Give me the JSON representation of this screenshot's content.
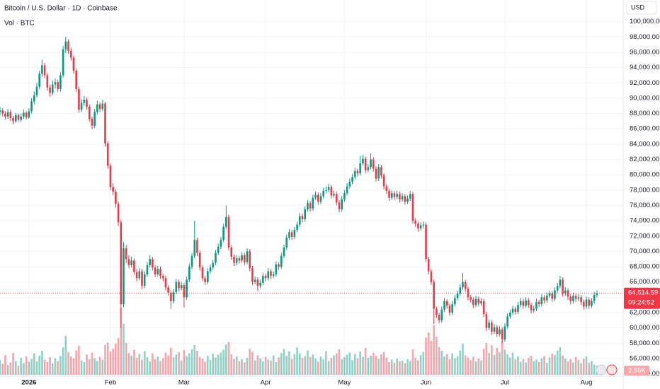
{
  "chart_data": {
    "type": "candlestick",
    "title": "Bitcoin / U.S. Dollar · 1D · Coinbase",
    "volume_title": "Vol · BTC",
    "currency": "USD",
    "up_color": "#089981",
    "down_color": "#f23645",
    "grid": true,
    "xlim": [
      0,
      237
    ],
    "xticks": [
      {
        "value": 11,
        "label": "2026"
      },
      {
        "value": 42,
        "label": "Feb"
      },
      {
        "value": 70,
        "label": "Mar"
      },
      {
        "value": 101,
        "label": "Apr"
      },
      {
        "value": 131,
        "label": "May"
      },
      {
        "value": 162,
        "label": "Jun"
      },
      {
        "value": 192,
        "label": "Jul"
      },
      {
        "value": 223,
        "label": "Aug"
      }
    ],
    "ylim": [
      52950,
      102830
    ],
    "yticks": [
      {
        "value": 54000,
        "label": "54,000.00"
      },
      {
        "value": 56000,
        "label": "56,000.00"
      },
      {
        "value": 58000,
        "label": "58,000.00"
      },
      {
        "value": 60000,
        "label": "60,000.00"
      },
      {
        "value": 62000,
        "label": "62,000.00"
      },
      {
        "value": 64000,
        "label": "64,000.00"
      },
      {
        "value": 66000,
        "label": "66,000.00"
      },
      {
        "value": 68000,
        "label": "68,000.00"
      },
      {
        "value": 70000,
        "label": "70,000.00"
      },
      {
        "value": 72000,
        "label": "72,000.00"
      },
      {
        "value": 74000,
        "label": "74,000.00"
      },
      {
        "value": 76000,
        "label": "76,000.00"
      },
      {
        "value": 78000,
        "label": "78,000.00"
      },
      {
        "value": 80000,
        "label": "80,000.00"
      },
      {
        "value": 82000,
        "label": "82,000.00"
      },
      {
        "value": 84000,
        "label": "84,000.00"
      },
      {
        "value": 86000,
        "label": "86,000.00"
      },
      {
        "value": 88000,
        "label": "88,000.00"
      },
      {
        "value": 90000,
        "label": "90,000.00"
      },
      {
        "value": 92000,
        "label": "92,000.00"
      },
      {
        "value": 94000,
        "label": "94,000.00"
      },
      {
        "value": 96000,
        "label": "96,000.00"
      },
      {
        "value": 98000,
        "label": "98,000.00"
      },
      {
        "value": 100000,
        "label": "100,000.00"
      }
    ],
    "volume_lim": [
      0,
      20000
    ],
    "last_price": {
      "value": 64514.59,
      "label": "64,514.59"
    },
    "countdown": "09:24:52",
    "last_volume": {
      "value": 2550,
      "label": "2.55K"
    },
    "x": [
      0,
      1,
      2,
      3,
      4,
      5,
      6,
      7,
      8,
      9,
      10,
      11,
      12,
      13,
      14,
      15,
      16,
      17,
      18,
      19,
      20,
      21,
      22,
      23,
      24,
      25,
      26,
      27,
      28,
      29,
      30,
      31,
      32,
      33,
      34,
      35,
      36,
      37,
      38,
      39,
      40,
      41,
      42,
      43,
      44,
      45,
      46,
      47,
      48,
      49,
      50,
      51,
      52,
      53,
      54,
      55,
      56,
      57,
      58,
      59,
      60,
      61,
      62,
      63,
      64,
      65,
      66,
      67,
      68,
      69,
      70,
      71,
      72,
      73,
      74,
      75,
      76,
      77,
      78,
      79,
      80,
      81,
      82,
      83,
      84,
      85,
      86,
      87,
      88,
      89,
      90,
      91,
      92,
      93,
      94,
      95,
      96,
      97,
      98,
      99,
      100,
      101,
      102,
      103,
      104,
      105,
      106,
      107,
      108,
      109,
      110,
      111,
      112,
      113,
      114,
      115,
      116,
      117,
      118,
      119,
      120,
      121,
      122,
      123,
      124,
      125,
      126,
      127,
      128,
      129,
      130,
      131,
      132,
      133,
      134,
      135,
      136,
      137,
      138,
      139,
      140,
      141,
      142,
      143,
      144,
      145,
      146,
      147,
      148,
      149,
      150,
      151,
      152,
      153,
      154,
      155,
      156,
      157,
      158,
      159,
      160,
      161,
      162,
      163,
      164,
      165,
      166,
      167,
      168,
      169,
      170,
      171,
      172,
      173,
      174,
      175,
      176,
      177,
      178,
      179,
      180,
      181,
      182,
      183,
      184,
      185,
      186,
      187,
      188,
      189,
      190,
      191,
      192,
      193,
      194,
      195,
      196,
      197,
      198,
      199,
      200,
      201,
      202,
      203,
      204,
      205,
      206,
      207,
      208,
      209,
      210,
      211,
      212,
      213,
      214,
      215,
      216,
      217,
      218,
      219,
      220,
      221,
      222,
      223,
      224,
      225,
      226,
      227
    ],
    "open": [
      88200,
      88400,
      88000,
      87600,
      88200,
      87400,
      87000,
      87800,
      87200,
      87600,
      88100,
      87500,
      88300,
      89600,
      90400,
      91500,
      93200,
      94300,
      93000,
      91400,
      90700,
      91800,
      92100,
      91200,
      93000,
      96400,
      97400,
      96200,
      95300,
      93600,
      91200,
      88500,
      89400,
      89800,
      88900,
      87300,
      86400,
      88200,
      89200,
      88600,
      89300,
      84100,
      81200,
      78400,
      77800,
      76200,
      73800,
      63100,
      70400,
      69000,
      68200,
      68800,
      67300,
      66500,
      67400,
      65500,
      67000,
      68200,
      69000,
      67900,
      67000,
      67700,
      66800,
      66500,
      65300,
      64600,
      63500,
      64700,
      66000,
      65200,
      65600,
      64000,
      66300,
      68000,
      69400,
      71500,
      69800,
      67900,
      66500,
      66000,
      67400,
      67900,
      68500,
      69800,
      70600,
      71500,
      73200,
      74500,
      70500,
      69300,
      68500,
      69100,
      68800,
      69500,
      68600,
      70000,
      67800,
      66000,
      66300,
      65500,
      65900,
      66800,
      66500,
      67400,
      66800,
      67000,
      68300,
      68000,
      69400,
      70500,
      71800,
      72500,
      71900,
      72800,
      73500,
      74600,
      74200,
      75500,
      76300,
      75600,
      77000,
      77400,
      76500,
      77200,
      77900,
      78000,
      78400,
      77300,
      77500,
      76400,
      75500,
      76800,
      77600,
      78500,
      79100,
      79700,
      80500,
      80200,
      81500,
      82100,
      80600,
      81000,
      82000,
      80800,
      79500,
      81000,
      79900,
      78500,
      77900,
      77000,
      77600,
      77100,
      77500,
      76800,
      77200,
      76500,
      76900,
      77500,
      74000,
      73600,
      73000,
      73400,
      73500,
      69000,
      67400,
      66000,
      62500,
      61700,
      61000,
      62400,
      63500,
      62900,
      62000,
      63100,
      63900,
      64500,
      65300,
      66000,
      65100,
      64000,
      63700,
      63000,
      63800,
      63200,
      63500,
      61800,
      60000,
      60700,
      59500,
      60100,
      59200,
      59800,
      58500,
      60200,
      61500,
      62000,
      62500,
      62100,
      63000,
      63500,
      62900,
      63600,
      63000,
      62300,
      62500,
      63400,
      63100,
      64000,
      63600,
      64200,
      64500,
      63800,
      64900,
      65500,
      66300,
      64500,
      64900,
      64100,
      63500,
      64200,
      63800,
      64000,
      63400,
      62800,
      63700,
      62900,
      63500,
      64300
    ],
    "high": [
      88900,
      88700,
      88300,
      88600,
      88500,
      87700,
      88100,
      88000,
      88000,
      88500,
      88300,
      88700,
      90000,
      90900,
      92000,
      93600,
      95000,
      94600,
      93300,
      91800,
      92300,
      92600,
      92400,
      93400,
      96800,
      98000,
      97700,
      96600,
      95600,
      93900,
      91500,
      89900,
      90300,
      90100,
      89200,
      87600,
      88600,
      89700,
      89500,
      89800,
      89500,
      84400,
      81500,
      78900,
      78100,
      76500,
      74100,
      71200,
      70800,
      69500,
      69300,
      69100,
      67700,
      67800,
      67700,
      67400,
      68600,
      69500,
      69300,
      68200,
      68100,
      68000,
      67100,
      66800,
      65600,
      64900,
      65100,
      66400,
      66300,
      66000,
      65900,
      66700,
      68400,
      69800,
      74000,
      71800,
      70100,
      68200,
      66800,
      67800,
      68300,
      68900,
      70200,
      71000,
      71900,
      73600,
      76000,
      74800,
      70800,
      69600,
      69500,
      69400,
      69900,
      69800,
      70400,
      70300,
      68100,
      66700,
      66600,
      66300,
      67200,
      67100,
      67800,
      67700,
      67400,
      68700,
      68600,
      69800,
      70900,
      72200,
      72900,
      72800,
      73200,
      73900,
      75000,
      74900,
      75900,
      76700,
      76600,
      77400,
      77800,
      77700,
      77600,
      78300,
      78500,
      78800,
      78700,
      77900,
      77800,
      76700,
      77200,
      78000,
      78900,
      79500,
      80100,
      80900,
      80800,
      82500,
      82600,
      82400,
      81400,
      82800,
      82300,
      81100,
      81400,
      81300,
      80200,
      78800,
      78200,
      78000,
      77900,
      77900,
      77800,
      77600,
      77500,
      77300,
      77900,
      77800,
      74300,
      73900,
      73800,
      73900,
      73800,
      69300,
      67700,
      66300,
      62800,
      62000,
      62800,
      63900,
      63800,
      63200,
      63500,
      64300,
      64900,
      65700,
      67200,
      66300,
      65400,
      64300,
      64000,
      64200,
      64100,
      63900,
      63800,
      62100,
      61100,
      61000,
      60500,
      60400,
      60200,
      60100,
      60600,
      61900,
      62400,
      62900,
      62800,
      63400,
      63900,
      63800,
      64000,
      63900,
      63300,
      62900,
      63800,
      63700,
      64400,
      64300,
      64600,
      64900,
      64800,
      65300,
      65900,
      66800,
      66600,
      65300,
      65200,
      64400,
      64600,
      64500,
      64400,
      64300,
      63700,
      64100,
      64000,
      63900,
      64700,
      64900
    ],
    "low": [
      87800,
      87600,
      87200,
      87300,
      87000,
      86600,
      86800,
      86900,
      86900,
      87300,
      87200,
      87300,
      88000,
      89200,
      90100,
      91200,
      92800,
      92600,
      91000,
      90200,
      90400,
      91300,
      90800,
      90900,
      92700,
      95900,
      95800,
      94900,
      93200,
      90800,
      88100,
      88200,
      89000,
      88500,
      86900,
      86000,
      86100,
      87900,
      88200,
      88300,
      83700,
      80800,
      78000,
      77300,
      75700,
      73300,
      60000,
      62700,
      68500,
      67800,
      67900,
      66900,
      66100,
      66200,
      65100,
      65200,
      66700,
      67900,
      67500,
      66600,
      66700,
      66400,
      66100,
      64900,
      64200,
      62500,
      63200,
      64400,
      64800,
      64900,
      62700,
      63700,
      66000,
      67700,
      69100,
      69400,
      67500,
      66100,
      65600,
      65700,
      67100,
      67600,
      68200,
      69500,
      70300,
      71200,
      72900,
      70100,
      68900,
      68100,
      68200,
      68400,
      68500,
      68200,
      68300,
      67400,
      65600,
      65700,
      64800,
      65200,
      65600,
      66100,
      66200,
      66400,
      66500,
      66700,
      67600,
      67700,
      69100,
      70200,
      71500,
      71500,
      71600,
      72500,
      73200,
      73800,
      73900,
      75200,
      75200,
      75300,
      76700,
      76100,
      76200,
      76900,
      77600,
      77700,
      76900,
      77000,
      76000,
      75100,
      75200,
      76500,
      77300,
      78200,
      78800,
      79400,
      79800,
      79900,
      81200,
      80200,
      80300,
      80700,
      80400,
      79100,
      79200,
      79500,
      78100,
      77500,
      76600,
      76700,
      76700,
      76800,
      76400,
      76500,
      76100,
      76200,
      76600,
      73600,
      73200,
      72600,
      72700,
      73000,
      68600,
      67000,
      65600,
      60500,
      61300,
      60600,
      60700,
      62100,
      62500,
      61600,
      61700,
      62800,
      63600,
      64200,
      65000,
      64700,
      63600,
      63300,
      62600,
      62700,
      62800,
      62900,
      61400,
      59600,
      59700,
      59100,
      59200,
      58800,
      58900,
      58000,
      58200,
      59900,
      61200,
      61700,
      61700,
      61800,
      62700,
      62500,
      62600,
      62600,
      61900,
      62000,
      62200,
      62700,
      62800,
      63200,
      63300,
      63900,
      63400,
      63500,
      64600,
      65200,
      64100,
      64200,
      63700,
      63100,
      63200,
      63400,
      63500,
      63000,
      62400,
      62500,
      62500,
      62600,
      63200,
      64000
    ],
    "close": [
      88400,
      88000,
      87600,
      88200,
      87400,
      87000,
      87800,
      87200,
      87600,
      88100,
      87500,
      88300,
      89600,
      90400,
      91500,
      93200,
      94300,
      93000,
      91400,
      90700,
      91800,
      92100,
      91200,
      93000,
      96400,
      97400,
      96200,
      95300,
      93600,
      91200,
      88500,
      89400,
      89800,
      88900,
      87300,
      86400,
      88200,
      89200,
      88600,
      89300,
      84100,
      81200,
      78400,
      77800,
      76200,
      73800,
      63100,
      70400,
      69000,
      68200,
      68800,
      67300,
      66500,
      67400,
      65500,
      67000,
      68200,
      69000,
      67900,
      67000,
      67700,
      66800,
      66500,
      65300,
      64600,
      63500,
      64700,
      66000,
      65200,
      65600,
      64000,
      66300,
      68000,
      69400,
      71500,
      69800,
      67900,
      66500,
      66000,
      67400,
      67900,
      68500,
      69800,
      70600,
      71500,
      73200,
      74500,
      70500,
      69300,
      68500,
      69100,
      68800,
      69500,
      68600,
      70000,
      67800,
      66000,
      66300,
      65500,
      65900,
      66800,
      66500,
      67400,
      66800,
      67000,
      68300,
      68000,
      69400,
      70500,
      71800,
      72500,
      71900,
      72800,
      73500,
      74600,
      74200,
      75500,
      76300,
      75600,
      77000,
      77400,
      76500,
      77200,
      77900,
      78000,
      78400,
      77300,
      77500,
      76400,
      75500,
      76800,
      77600,
      78500,
      79100,
      79700,
      80500,
      80200,
      81500,
      82100,
      80600,
      81000,
      82000,
      80800,
      79500,
      81000,
      79900,
      78500,
      77900,
      77000,
      77600,
      77100,
      77500,
      76800,
      77200,
      76500,
      76900,
      77500,
      74000,
      73600,
      73000,
      73400,
      73500,
      69000,
      67400,
      66000,
      62500,
      61700,
      61000,
      62400,
      63500,
      62900,
      62000,
      63100,
      63900,
      64500,
      65300,
      66000,
      65100,
      64000,
      63700,
      63000,
      63800,
      63200,
      63500,
      61800,
      60000,
      60700,
      59500,
      60100,
      59200,
      59800,
      58500,
      60200,
      61500,
      62000,
      62500,
      62100,
      63000,
      63500,
      62900,
      63600,
      63000,
      62300,
      62500,
      63400,
      63100,
      64000,
      63600,
      64200,
      64500,
      63800,
      64900,
      65500,
      66300,
      64500,
      64900,
      64100,
      63500,
      64200,
      63800,
      64000,
      63400,
      62800,
      63700,
      62900,
      63500,
      64300,
      64514.59
    ],
    "volume": [
      4200,
      3100,
      5600,
      2800,
      3500,
      6200,
      3900,
      2600,
      4800,
      3300,
      5200,
      3700,
      4500,
      6100,
      3800,
      5400,
      6800,
      4300,
      3600,
      5000,
      3200,
      4700,
      3900,
      5300,
      7800,
      11000,
      6400,
      5200,
      4600,
      6900,
      8200,
      4100,
      3600,
      5800,
      4400,
      6300,
      4700,
      3900,
      5100,
      4300,
      8500,
      9200,
      6600,
      7400,
      8800,
      10400,
      19000,
      14500,
      9000,
      6200,
      5400,
      7100,
      4800,
      5900,
      4300,
      6700,
      5000,
      3800,
      6100,
      4400,
      5200,
      3900,
      4700,
      6300,
      5500,
      7600,
      4900,
      5800,
      6400,
      4100,
      7000,
      5300,
      6100,
      7200,
      8400,
      6800,
      5100,
      4600,
      3700,
      5400,
      4200,
      6000,
      4900,
      5700,
      6300,
      7100,
      8600,
      9300,
      5800,
      4500,
      5200,
      3900,
      4400,
      3500,
      4800,
      7400,
      6500,
      4100,
      5600,
      4700,
      3800,
      5100,
      4300,
      4000,
      5500,
      3600,
      4900,
      6200,
      7300,
      5400,
      6600,
      4500,
      5900,
      7800,
      6100,
      4800,
      5300,
      6900,
      5000,
      5800,
      4600,
      3700,
      5200,
      4400,
      6700,
      3900,
      4800,
      5500,
      6100,
      7200,
      4400,
      5000,
      5700,
      6300,
      4200,
      5900,
      4700,
      6600,
      5100,
      7600,
      4800,
      5400,
      6200,
      5300,
      4500,
      5800,
      6400,
      4900,
      3600,
      4300,
      3400,
      4600,
      3800,
      4100,
      3300,
      4400,
      3900,
      7200,
      4800,
      4100,
      5600,
      6500,
      10500,
      12000,
      9600,
      14000,
      10800,
      7900,
      6800,
      5200,
      5900,
      4400,
      6100,
      4700,
      5300,
      6900,
      8800,
      5500,
      4900,
      4200,
      5100,
      3800,
      4600,
      4100,
      7400,
      9000,
      6200,
      8300,
      5600,
      7600,
      6400,
      9700,
      7100,
      5800,
      4900,
      6300,
      4400,
      5200,
      3700,
      4500,
      3500,
      4800,
      5400,
      3900,
      4300,
      3600,
      4700,
      5300,
      3400,
      4900,
      6000,
      5600,
      6900,
      7800,
      5500,
      4600,
      3800,
      4400,
      3500,
      5100,
      4200,
      3300,
      4600,
      5200,
      3400,
      3900,
      2900,
      2550
    ]
  }
}
